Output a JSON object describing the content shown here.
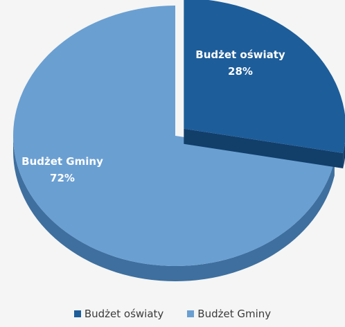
{
  "chart_data": {
    "type": "pie",
    "style": "3d-exploded",
    "categories": [
      "Budżet oświaty",
      "Budżet Gminy"
    ],
    "values": [
      28,
      72
    ],
    "value_labels": [
      "28%",
      "72%"
    ],
    "colors": [
      "#1d5d9a",
      "#6a9fd2"
    ],
    "side_colors": [
      "#123e6a",
      "#3e6f9f"
    ],
    "legend": {
      "position": "bottom",
      "items": [
        {
          "label": "Budżet oświaty",
          "color": "#1d5d9a"
        },
        {
          "label": "Budżet Gminy",
          "color": "#6a9fd2"
        }
      ]
    },
    "title": ""
  }
}
